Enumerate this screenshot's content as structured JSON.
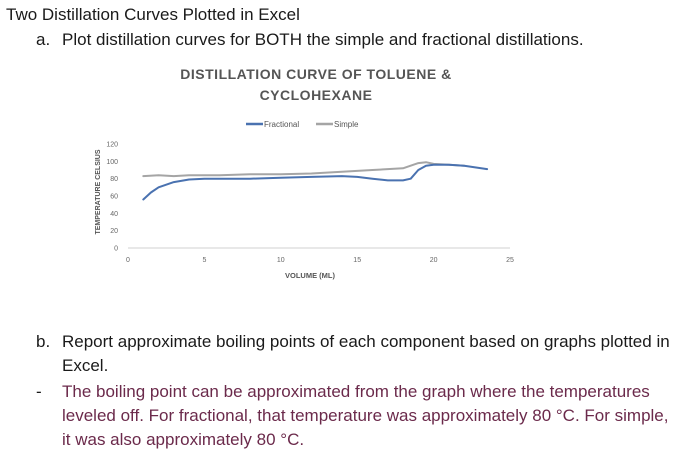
{
  "heading": "Two Distillation Curves Plotted in Excel",
  "item_a": {
    "marker": "a.",
    "text": "Plot distillation curves for BOTH the simple and fractional distillations."
  },
  "item_b": {
    "marker": "b.",
    "line1": "Report approximate boiling points of each component based on graphs plotted in",
    "line2": "Excel."
  },
  "answer": {
    "marker": "-",
    "line1": "The boiling point can be approximated from the graph where the temperatures",
    "line2": "leveled off. For fractional, that temperature was approximately 80 °C. For simple,",
    "line3": "it was also approximately 80 °C."
  },
  "colors": {
    "fractional": "#4a72b0",
    "simple": "#a5a5a5",
    "answer_text": "#6b2a4b"
  },
  "chart_data": {
    "type": "line",
    "title_line1": "DISTILLATION CURVE OF TOLUENE &",
    "title_line2": "CYCLOHEXANE",
    "xlabel": "VOLUME (ML)",
    "ylabel": "TEMPERATURE CELSIUS",
    "xlim": [
      0,
      25
    ],
    "ylim": [
      0,
      120
    ],
    "xticks": [
      0,
      5,
      10,
      15,
      20,
      25
    ],
    "yticks": [
      0,
      20,
      40,
      60,
      80,
      100,
      120
    ],
    "legend_position": "top-center",
    "grid": false,
    "series": [
      {
        "name": "Fractional",
        "x": [
          1,
          1.5,
          2,
          3,
          4,
          5,
          6,
          8,
          10,
          12,
          14,
          15,
          16,
          17,
          18,
          18.5,
          19,
          19.5,
          20,
          21,
          22,
          23.5
        ],
        "y": [
          56,
          64,
          70,
          76,
          79,
          80,
          80,
          80,
          81,
          82,
          83,
          82,
          80,
          78,
          78,
          80,
          90,
          95,
          96,
          96,
          95,
          91
        ]
      },
      {
        "name": "Simple",
        "x": [
          1,
          2,
          3,
          4,
          5,
          6,
          8,
          10,
          12,
          14,
          16,
          18,
          19,
          19.5,
          20,
          21,
          22
        ],
        "y": [
          83,
          84,
          83,
          84,
          84,
          84,
          85,
          85,
          86,
          88,
          90,
          92,
          98,
          99,
          97,
          96,
          95
        ]
      }
    ]
  }
}
